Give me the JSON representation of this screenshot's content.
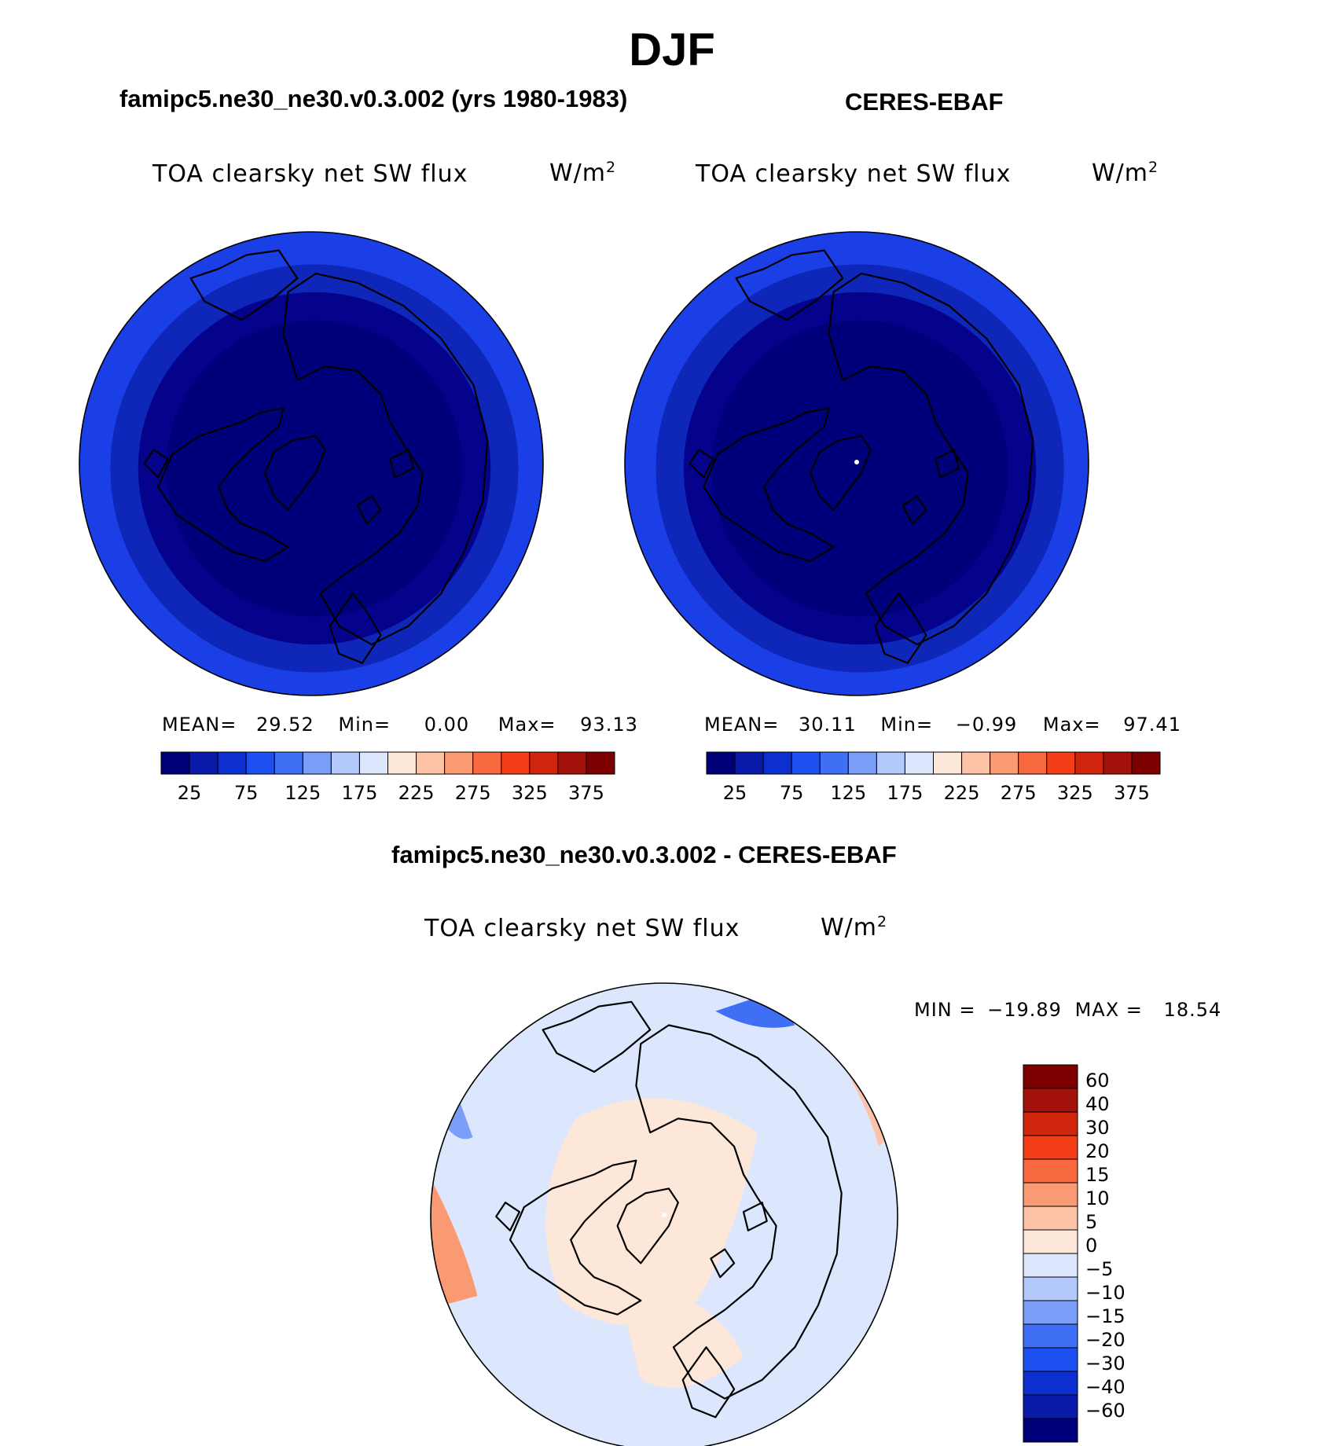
{
  "main_title": "DJF",
  "panels": [
    {
      "subtitle": "famipc5.ne30_ne30.v0.3.002 (yrs 1980-1983)",
      "variable": "TOA clearsky net SW flux",
      "units_base": "W/m",
      "units_exp": "2",
      "stats": {
        "mean_label": "MEAN=",
        "mean": "29.52",
        "min_label": "Min=",
        "min": "0.00",
        "max_label": "Max=",
        "max": "93.13"
      }
    },
    {
      "subtitle": "CERES-EBAF",
      "variable": "TOA clearsky net SW flux",
      "units_base": "W/m",
      "units_exp": "2",
      "stats": {
        "mean_label": "MEAN=",
        "mean": "30.11",
        "min_label": "Min=",
        "min": "−0.99",
        "max_label": "Max=",
        "max": "97.41"
      }
    },
    {
      "subtitle": "famipc5.ne30_ne30.v0.3.002 - CERES-EBAF",
      "variable": "TOA clearsky net SW flux",
      "units_base": "W/m",
      "units_exp": "2",
      "stats": {
        "min_label": "MIN =",
        "min": "−19.89",
        "max_label": "MAX =",
        "max": "18.54"
      }
    }
  ],
  "chart_data": [
    {
      "type": "heatmap",
      "projection": "north polar stereographic",
      "title": "famipc5.ne30_ne30.v0.3.002 (yrs 1980-1983)",
      "field": "TOA clearsky net SW flux",
      "units": "W/m2",
      "mean": 29.52,
      "min": 0.0,
      "max": 93.13,
      "colorbar_levels": [
        25,
        50,
        75,
        100,
        125,
        150,
        175,
        200,
        225,
        250,
        275,
        300,
        325,
        350,
        375
      ],
      "colorbar_labels": [
        "25",
        "75",
        "125",
        "175",
        "225",
        "275",
        "325",
        "375"
      ],
      "colorbar_colors": [
        "#00007a",
        "#0a1aa8",
        "#0d2fd0",
        "#1e4ff0",
        "#3f6ff5",
        "#7a9ef8",
        "#b3c8fb",
        "#dce7fd",
        "#fde7d9",
        "#fcc3a6",
        "#fa9a72",
        "#f8693f",
        "#f23d16",
        "#d0240c",
        "#a3120a",
        "#7d0000"
      ],
      "field_zone_colors": [
        "#1b3fe6",
        "#0f27b8",
        "#05038c",
        "#00007a"
      ]
    },
    {
      "type": "heatmap",
      "projection": "north polar stereographic",
      "title": "CERES-EBAF",
      "field": "TOA clearsky net SW flux",
      "units": "W/m2",
      "mean": 30.11,
      "min": -0.99,
      "max": 97.41,
      "colorbar_levels": [
        25,
        50,
        75,
        100,
        125,
        150,
        175,
        200,
        225,
        250,
        275,
        300,
        325,
        350,
        375
      ],
      "colorbar_labels": [
        "25",
        "75",
        "125",
        "175",
        "225",
        "275",
        "325",
        "375"
      ],
      "colorbar_colors": [
        "#00007a",
        "#0a1aa8",
        "#0d2fd0",
        "#1e4ff0",
        "#3f6ff5",
        "#7a9ef8",
        "#b3c8fb",
        "#dce7fd",
        "#fde7d9",
        "#fcc3a6",
        "#fa9a72",
        "#f8693f",
        "#f23d16",
        "#d0240c",
        "#a3120a",
        "#7d0000"
      ],
      "field_zone_colors": [
        "#1b3fe6",
        "#0f27b8",
        "#05038c",
        "#00007a"
      ]
    },
    {
      "type": "heatmap",
      "projection": "north polar stereographic",
      "title": "famipc5.ne30_ne30.v0.3.002 - CERES-EBAF",
      "field": "TOA clearsky net SW flux",
      "units": "W/m2",
      "min": -19.89,
      "max": 18.54,
      "colorbar_levels": [
        60,
        40,
        30,
        20,
        15,
        10,
        5,
        0,
        -5,
        -10,
        -15,
        -20,
        -30,
        -40,
        -60
      ],
      "colorbar_labels": [
        "60",
        "40",
        "30",
        "20",
        "15",
        "10",
        "5",
        "0",
        "−5",
        "−10",
        "−15",
        "−20",
        "−30",
        "−40",
        "−60"
      ],
      "colorbar_colors": [
        "#7d0000",
        "#a3120a",
        "#d0240c",
        "#f23d16",
        "#f8693f",
        "#fa9a72",
        "#fcc3a6",
        "#fde7d9",
        "#dce7fd",
        "#b3c8fb",
        "#7a9ef8",
        "#3f6ff5",
        "#1e4ff0",
        "#0d2fd0",
        "#0a1aa8",
        "#00007a"
      ],
      "field_zone_colors": [
        "#dce7fd",
        "#fde7d9"
      ]
    }
  ]
}
